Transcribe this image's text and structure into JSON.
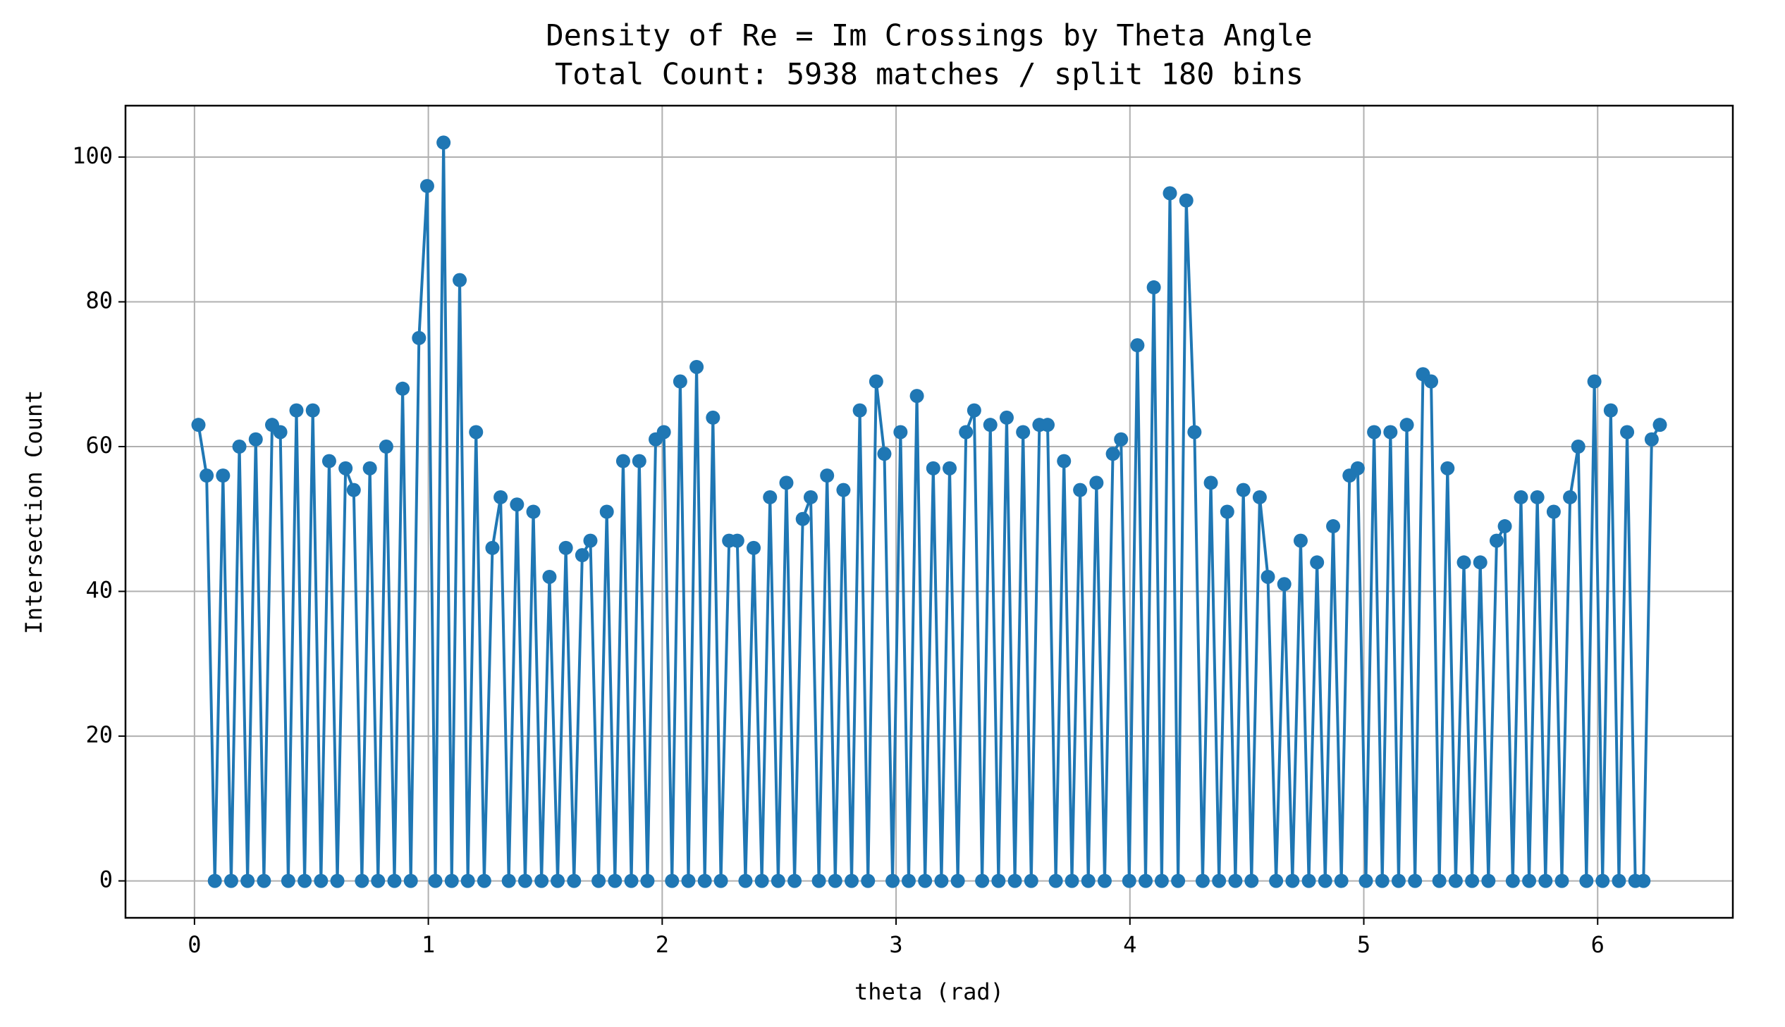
{
  "chart_data": {
    "type": "line",
    "title": "Density of Re = Im Crossings by Theta Angle",
    "subtitle": "Total Count: 5938 matches / split 180 bins",
    "x_label": "theta (rad)",
    "y_label": "Intersection Count",
    "color": "#1f77b4",
    "grid": true,
    "markers": true,
    "xlim": [
      -0.295,
      6.578
    ],
    "ylim": [
      -5.1,
      107.1
    ],
    "xticks": [
      0,
      1,
      2,
      3,
      4,
      5,
      6
    ],
    "yticks": [
      0,
      20,
      40,
      60,
      80,
      100
    ],
    "x": [
      0.017,
      0.052,
      0.087,
      0.122,
      0.157,
      0.192,
      0.227,
      0.262,
      0.297,
      0.332,
      0.367,
      0.401,
      0.436,
      0.471,
      0.506,
      0.541,
      0.576,
      0.611,
      0.646,
      0.681,
      0.716,
      0.75,
      0.785,
      0.82,
      0.855,
      0.89,
      0.925,
      0.96,
      0.995,
      1.03,
      1.065,
      1.1,
      1.134,
      1.169,
      1.204,
      1.239,
      1.274,
      1.309,
      1.344,
      1.379,
      1.414,
      1.449,
      1.484,
      1.518,
      1.553,
      1.588,
      1.623,
      1.658,
      1.693,
      1.728,
      1.763,
      1.798,
      1.833,
      1.868,
      1.902,
      1.937,
      1.972,
      2.007,
      2.042,
      2.077,
      2.112,
      2.147,
      2.182,
      2.217,
      2.251,
      2.286,
      2.321,
      2.356,
      2.391,
      2.426,
      2.461,
      2.496,
      2.531,
      2.566,
      2.601,
      2.635,
      2.67,
      2.705,
      2.74,
      2.775,
      2.81,
      2.845,
      2.88,
      2.915,
      2.95,
      2.985,
      3.019,
      3.054,
      3.089,
      3.124,
      3.159,
      3.194,
      3.229,
      3.264,
      3.299,
      3.334,
      3.368,
      3.403,
      3.438,
      3.473,
      3.508,
      3.543,
      3.578,
      3.613,
      3.648,
      3.683,
      3.718,
      3.752,
      3.787,
      3.822,
      3.857,
      3.892,
      3.927,
      3.962,
      3.997,
      4.032,
      4.067,
      4.102,
      4.136,
      4.171,
      4.206,
      4.241,
      4.276,
      4.311,
      4.346,
      4.381,
      4.416,
      4.451,
      4.485,
      4.52,
      4.555,
      4.59,
      4.625,
      4.66,
      4.695,
      4.73,
      4.765,
      4.8,
      4.835,
      4.869,
      4.904,
      4.939,
      4.974,
      5.009,
      5.044,
      5.079,
      5.114,
      5.149,
      5.184,
      5.219,
      5.253,
      5.288,
      5.323,
      5.358,
      5.393,
      5.428,
      5.463,
      5.498,
      5.533,
      5.568,
      5.603,
      5.637,
      5.672,
      5.707,
      5.742,
      5.777,
      5.812,
      5.847,
      5.882,
      5.917,
      5.952,
      5.986,
      6.021,
      6.056,
      6.091,
      6.126,
      6.161,
      6.196,
      6.231,
      6.266
    ],
    "values": [
      63,
      56,
      0,
      56,
      0,
      60,
      0,
      61,
      0,
      63,
      62,
      0,
      65,
      0,
      65,
      0,
      58,
      0,
      57,
      54,
      0,
      57,
      0,
      60,
      0,
      68,
      0,
      75,
      96,
      0,
      102,
      0,
      83,
      0,
      62,
      0,
      46,
      53,
      0,
      52,
      0,
      51,
      0,
      42,
      0,
      46,
      0,
      45,
      47,
      0,
      51,
      0,
      58,
      0,
      58,
      0,
      61,
      62,
      0,
      69,
      0,
      71,
      0,
      64,
      0,
      47,
      47,
      0,
      46,
      0,
      53,
      0,
      55,
      0,
      50,
      53,
      0,
      56,
      0,
      54,
      0,
      65,
      0,
      69,
      59,
      0,
      62,
      0,
      67,
      0,
      57,
      0,
      57,
      0,
      62,
      65,
      0,
      63,
      0,
      64,
      0,
      62,
      0,
      63,
      63,
      0,
      58,
      0,
      54,
      0,
      55,
      0,
      59,
      61,
      0,
      74,
      0,
      82,
      0,
      95,
      0,
      94,
      62,
      0,
      55,
      0,
      51,
      0,
      54,
      0,
      53,
      42,
      0,
      41,
      0,
      47,
      0,
      44,
      0,
      49,
      0,
      56,
      57,
      0,
      62,
      0,
      62,
      0,
      63,
      0,
      70,
      69,
      0,
      57,
      0,
      44,
      0,
      44,
      0,
      47,
      49,
      0,
      53,
      0,
      53,
      0,
      51,
      0,
      53,
      60,
      0,
      69,
      0,
      65,
      0,
      62,
      0,
      0,
      61,
      63
    ]
  }
}
